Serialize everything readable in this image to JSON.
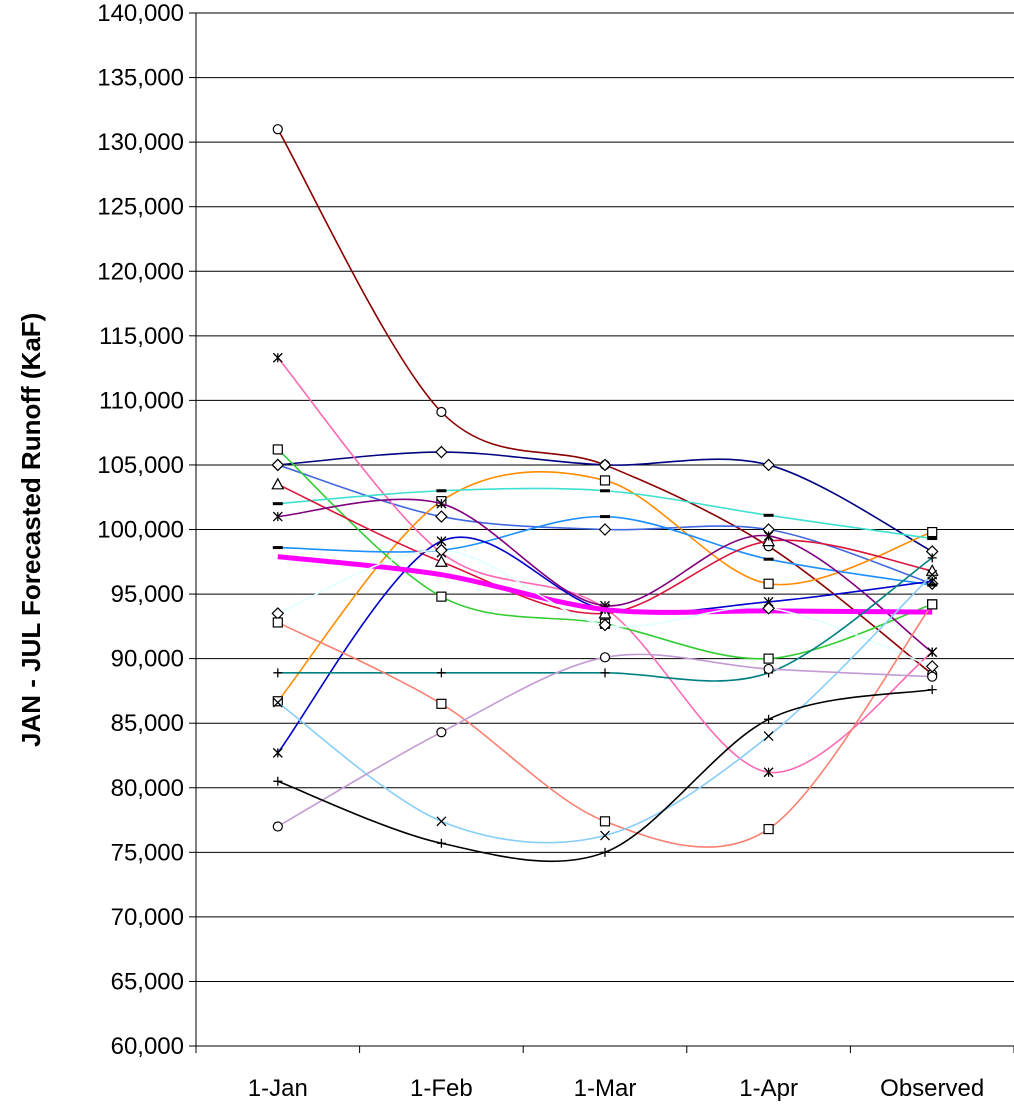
{
  "chart_data": {
    "type": "line",
    "title": "",
    "xlabel": "",
    "ylabel": "JAN - JUL Forecasted Runoff (KaF)",
    "ylim": [
      60000,
      140000
    ],
    "ytick_step": 5000,
    "ytick_labels": [
      "60,000",
      "65,000",
      "70,000",
      "75,000",
      "80,000",
      "85,000",
      "90,000",
      "95,000",
      "100,000",
      "105,000",
      "110,000",
      "115,000",
      "120,000",
      "125,000",
      "130,000",
      "135,000",
      "140,000"
    ],
    "categories": [
      "1-Jan",
      "1-Feb",
      "1-Mar",
      "1-Apr",
      "Observed"
    ],
    "grid": "horizontal",
    "legend": "none",
    "series": [
      {
        "color": "#8B0000",
        "marker": "circle",
        "values": [
          131000,
          109100,
          105000,
          98700,
          88800
        ]
      },
      {
        "color": "#000080",
        "marker": "diamond",
        "values": [
          105000,
          106000,
          105000,
          105000,
          98300
        ]
      },
      {
        "color": "#4169E1",
        "marker": "diamond",
        "values": [
          105000,
          101000,
          100000,
          100000,
          95800
        ]
      },
      {
        "color": "#FF69B4",
        "marker": "asterisk",
        "values": [
          113300,
          98200,
          93900,
          81200,
          90500
        ]
      },
      {
        "color": "#FF8C00",
        "marker": "square",
        "values": [
          86700,
          102200,
          103800,
          95800,
          99800
        ]
      },
      {
        "color": "#32CD32",
        "marker": "square",
        "values": [
          106200,
          94800,
          92700,
          90000,
          94200
        ]
      },
      {
        "color": "#1E90FF",
        "marker": "dash",
        "values": [
          98600,
          98400,
          101000,
          97700,
          95700
        ]
      },
      {
        "color": "#40E0D0",
        "marker": "dash",
        "values": [
          102000,
          103000,
          103000,
          101100,
          99300
        ]
      },
      {
        "color": "#DC143C",
        "marker": "triangle",
        "values": [
          103500,
          97500,
          93500,
          99100,
          96800
        ]
      },
      {
        "color": "#800080",
        "marker": "asterisk",
        "values": [
          101000,
          102000,
          94100,
          99500,
          90500
        ]
      },
      {
        "color": "#0000CD",
        "marker": "asterisk",
        "values": [
          82700,
          99100,
          93800,
          94400,
          96000
        ]
      },
      {
        "color": "#FF00FF",
        "marker": "none",
        "values": [
          97900,
          96500,
          93800,
          93700,
          93600
        ],
        "width": 5
      },
      {
        "color": "#E0FFFF",
        "marker": "diamond",
        "values": [
          93500,
          98400,
          92600,
          93900,
          89400
        ]
      },
      {
        "color": "#008080",
        "marker": "plus",
        "values": [
          88900,
          88900,
          88900,
          88900,
          97800
        ]
      },
      {
        "color": "#FA8072",
        "marker": "square",
        "values": [
          92800,
          86500,
          77400,
          76800,
          94200
        ]
      },
      {
        "color": "#87CEFA",
        "marker": "x",
        "values": [
          86600,
          77400,
          76300,
          84000,
          96500
        ]
      },
      {
        "color": "#C39BD3",
        "marker": "circle",
        "values": [
          77000,
          84300,
          90100,
          89200,
          88600
        ]
      },
      {
        "color": "#000000",
        "marker": "plus",
        "values": [
          80500,
          75700,
          75000,
          85300,
          87600
        ]
      }
    ]
  }
}
